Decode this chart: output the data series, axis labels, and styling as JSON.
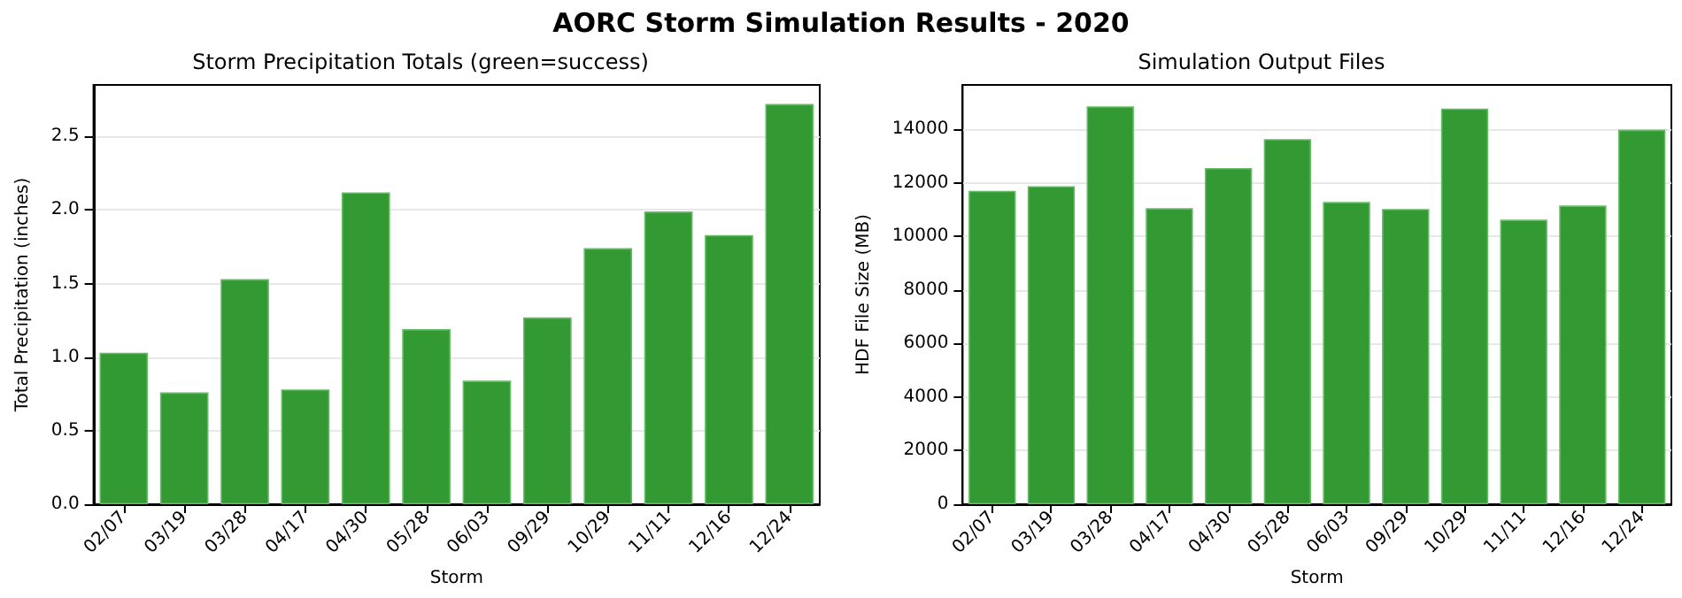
{
  "chart_data": [
    {
      "type": "bar",
      "title": "Storm Precipitation Totals (green=success)",
      "annotations": [
        "AORC Storm Simulation Results - 2020"
      ],
      "xlabel": "Storm",
      "ylabel": "Total Precipitation (inches)",
      "categories": [
        "02/07",
        "03/19",
        "03/28",
        "04/17",
        "04/30",
        "05/28",
        "06/03",
        "09/29",
        "10/29",
        "11/11",
        "12/16",
        "12/24"
      ],
      "values": [
        1.03,
        0.76,
        1.53,
        0.78,
        2.12,
        1.19,
        0.84,
        1.27,
        1.74,
        1.99,
        1.83,
        2.72
      ],
      "color": "#339933",
      "ylim": [
        0,
        2.85
      ],
      "yticks": [
        {
          "value": 0,
          "label": "0.0"
        },
        0.5,
        {
          "value": 1,
          "label": "1.0"
        },
        1.5,
        {
          "value": 2,
          "label": "2.0"
        },
        2.5
      ],
      "grid": "y"
    },
    {
      "type": "bar",
      "title": "Simulation Output Files",
      "xlabel": "Storm",
      "ylabel": "HDF File Size (MB)",
      "categories": [
        "02/07",
        "03/19",
        "03/28",
        "04/17",
        "04/30",
        "05/28",
        "06/03",
        "09/29",
        "10/29",
        "11/11",
        "12/16",
        "12/24"
      ],
      "values": [
        11700,
        11870,
        14850,
        11050,
        12550,
        13630,
        11280,
        11020,
        14770,
        10620,
        11150,
        13980
      ],
      "color": "#339933",
      "ylim": [
        0,
        15650
      ],
      "yticks": [
        0,
        2000,
        4000,
        6000,
        8000,
        10000,
        12000,
        14000
      ],
      "grid": "y"
    }
  ]
}
